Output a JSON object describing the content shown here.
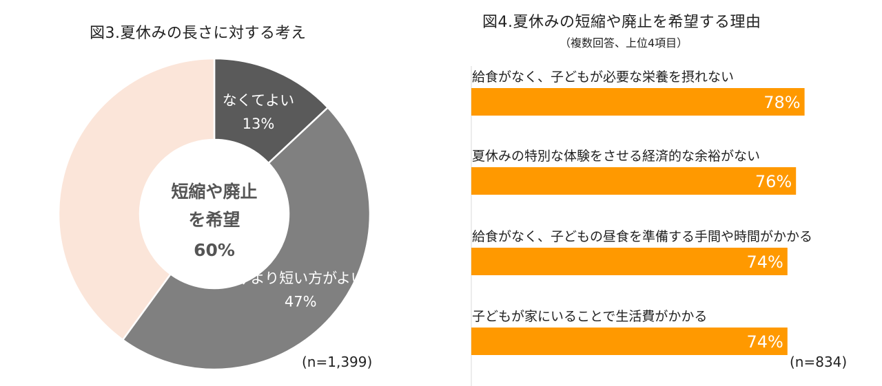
{
  "colors": {
    "not_needed": "#5a5a5a",
    "shorter": "#808080",
    "as_is": "#fbe5d9",
    "bar": "#ff9900",
    "white": "#ffffff"
  },
  "chart_data": [
    {
      "type": "pie",
      "title": "図3.夏休みの長さに対する考え",
      "center_label": [
        "短縮や廃止",
        "を希望",
        "60%"
      ],
      "slices": [
        {
          "label": "なくてよい",
          "value": 13,
          "value_label": "13%",
          "color": "#5a5a5a"
        },
        {
          "label": "今より短い方がよい",
          "value": 47,
          "value_label": "47%",
          "color": "#808080"
        },
        {
          "label": "",
          "value": 40,
          "value_label": "",
          "color": "#fbe5d9"
        }
      ],
      "note": "(n=1,399)"
    },
    {
      "type": "bar",
      "orientation": "horizontal",
      "title": "図4.夏休みの短縮や廃止を希望する理由",
      "subtitle": "（複数回答、上位4項目）",
      "categories": [
        "給食がなく、子どもが必要な栄養を摂れない",
        "夏休みの特別な体験をさせる経済的な余裕がない",
        "給食がなく、子どもの昼食を準備する手間や時間がかかる",
        "子どもが家にいることで生活費がかかる"
      ],
      "values": [
        78,
        76,
        74,
        74
      ],
      "value_labels": [
        "78%",
        "76%",
        "74%",
        "74%"
      ],
      "xlim": [
        0,
        100
      ],
      "color": "#ff9900",
      "note": "(n=834)"
    }
  ]
}
